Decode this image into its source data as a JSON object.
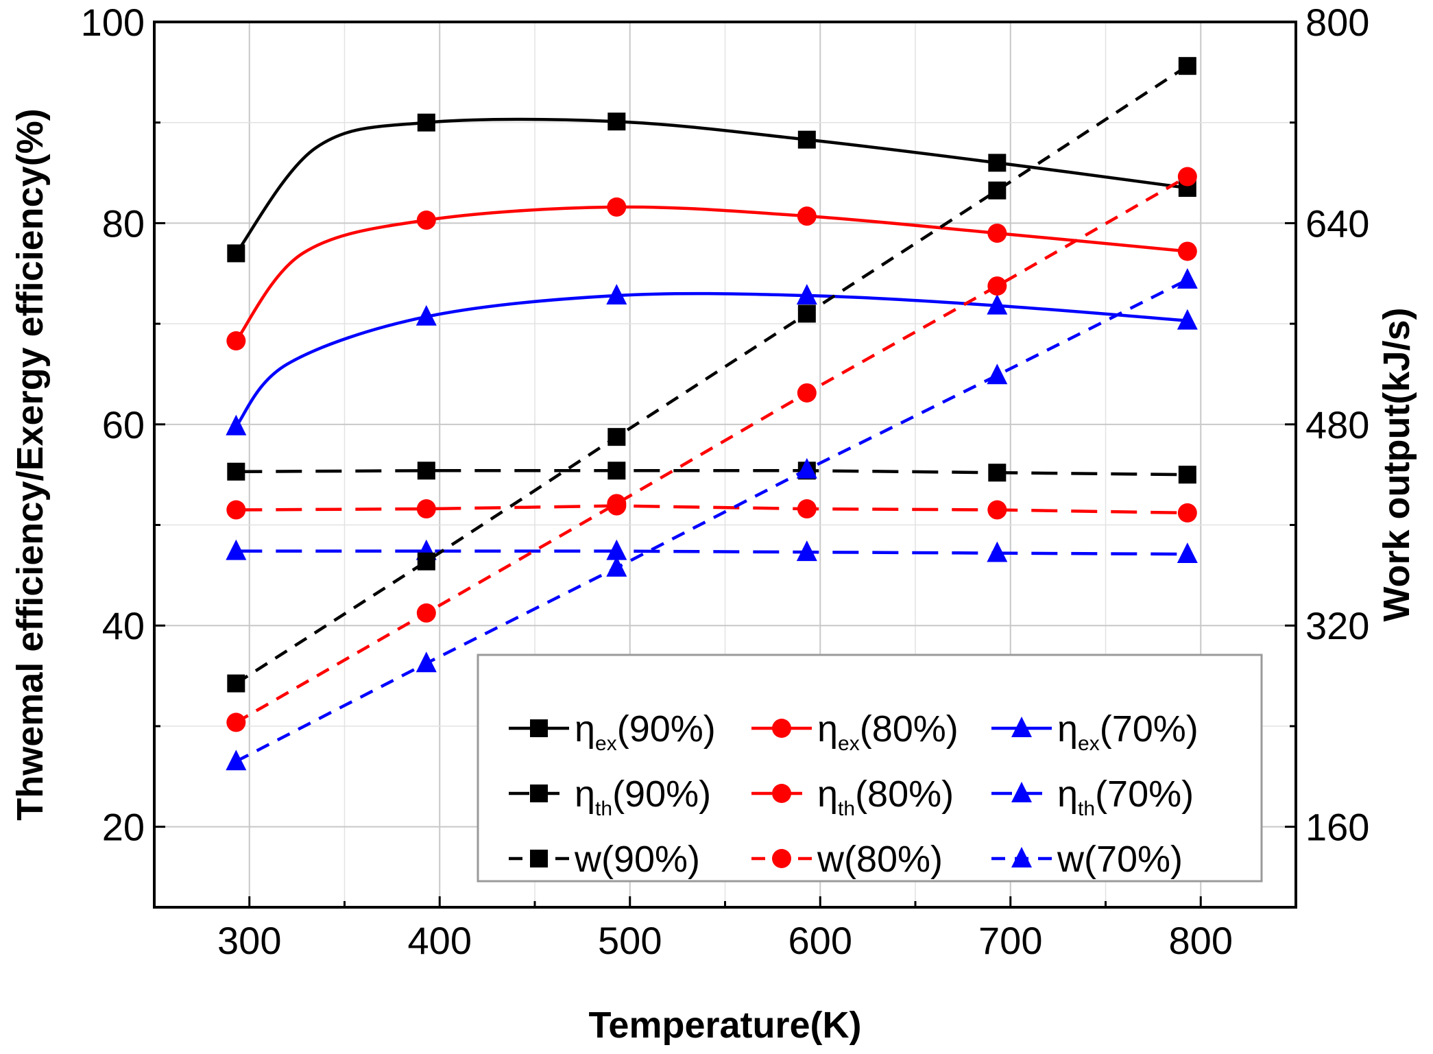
{
  "chart_data": {
    "type": "line",
    "title": "",
    "xlabel": "Temperature(K)",
    "ylabel": "Thwemal efficiency/Exergy efficiency(%)",
    "y2label": "Work output(kJ/s)",
    "xlim": [
      250,
      850
    ],
    "ylim": [
      12,
      100
    ],
    "y2lim": [
      96,
      800
    ],
    "xticks": [
      300,
      400,
      500,
      600,
      700,
      800
    ],
    "xtick_labels": [
      "300",
      "400",
      "500",
      "600",
      "700",
      "800"
    ],
    "yticks": [
      20,
      40,
      60,
      80,
      100
    ],
    "ytick_labels": [
      "20",
      "40",
      "60",
      "80",
      "100"
    ],
    "y2ticks": [
      160,
      320,
      480,
      640,
      800
    ],
    "y2tick_labels": [
      "160",
      "320",
      "480",
      "640",
      "800"
    ],
    "grid": true,
    "legend_position": "bottom-right",
    "x": [
      293,
      393,
      493,
      593,
      693,
      793
    ],
    "series": [
      {
        "name": "η_ex(90%)",
        "symbol": "η",
        "sub": "ex",
        "suffix": "(90%)",
        "axis": "left",
        "style": "solid",
        "marker": "square",
        "color": "#000000",
        "values": [
          77.0,
          90.0,
          90.1,
          88.3,
          86.0,
          83.5
        ],
        "curve_x": [
          293,
          335,
          393,
          493,
          593,
          693,
          793
        ],
        "curve_y": [
          77.0,
          87.5,
          90.0,
          90.1,
          88.3,
          86.0,
          83.5
        ]
      },
      {
        "name": "η_ex(80%)",
        "symbol": "η",
        "sub": "ex",
        "suffix": "(80%)",
        "axis": "left",
        "style": "solid",
        "marker": "circle",
        "color": "#ff0000",
        "values": [
          68.3,
          80.3,
          81.6,
          80.7,
          79.0,
          77.2
        ],
        "curve_x": [
          293,
          328,
          393,
          493,
          593,
          693,
          793
        ],
        "curve_y": [
          68.3,
          77.0,
          80.3,
          81.6,
          80.7,
          79.0,
          77.2
        ]
      },
      {
        "name": "η_ex(70%)",
        "symbol": "η",
        "sub": "ex",
        "suffix": "(70%)",
        "axis": "left",
        "style": "solid",
        "marker": "triangle",
        "color": "#0000ff",
        "values": [
          59.8,
          70.7,
          72.8,
          72.8,
          71.8,
          70.3
        ],
        "curve_x": [
          293,
          320,
          393,
          493,
          593,
          693,
          793
        ],
        "curve_y": [
          59.8,
          66.0,
          70.7,
          72.8,
          72.8,
          71.8,
          70.3
        ]
      },
      {
        "name": "η_th(90%)",
        "symbol": "η",
        "sub": "th",
        "suffix": "(90%)",
        "axis": "left",
        "style": "longdash",
        "marker": "square",
        "color": "#000000",
        "values": [
          55.3,
          55.4,
          55.4,
          55.4,
          55.2,
          55.0
        ]
      },
      {
        "name": "η_th(80%)",
        "symbol": "η",
        "sub": "th",
        "suffix": "(80%)",
        "axis": "left",
        "style": "longdash",
        "marker": "circle",
        "color": "#ff0000",
        "values": [
          51.5,
          51.6,
          51.9,
          51.6,
          51.5,
          51.2
        ]
      },
      {
        "name": "η_th(70%)",
        "symbol": "η",
        "sub": "th",
        "suffix": "(70%)",
        "axis": "left",
        "style": "longdash",
        "marker": "triangle",
        "color": "#0000ff",
        "values": [
          47.4,
          47.4,
          47.4,
          47.3,
          47.2,
          47.1
        ]
      },
      {
        "name": "w(90%)",
        "symbol": "w",
        "sub": "",
        "suffix": "(90%)",
        "axis": "right",
        "style": "shortdash",
        "marker": "square",
        "color": "#000000",
        "values": [
          274,
          371,
          470,
          568,
          666,
          765
        ]
      },
      {
        "name": "w(80%)",
        "symbol": "w",
        "sub": "",
        "suffix": "(80%)",
        "axis": "right",
        "style": "shortdash",
        "marker": "circle",
        "color": "#ff0000",
        "values": [
          243,
          330,
          417,
          505,
          590,
          677
        ]
      },
      {
        "name": "w(70%)",
        "symbol": "w",
        "sub": "",
        "suffix": "(70%)",
        "axis": "right",
        "style": "shortdash",
        "marker": "triangle",
        "color": "#0000ff",
        "values": [
          212,
          290,
          366,
          444,
          519,
          595
        ]
      }
    ]
  }
}
